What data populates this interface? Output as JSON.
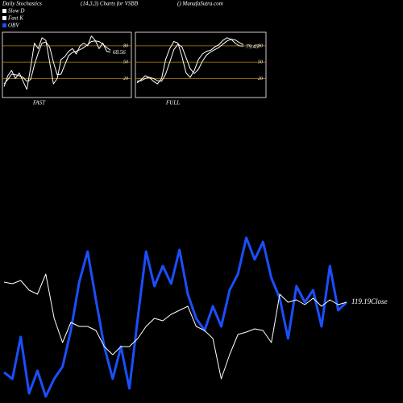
{
  "header": {
    "title": "Daily Stochastics",
    "subtitle": "(14,3,3) Charts for VSBB",
    "source": "() MunafaSutra.com"
  },
  "chart_data": [
    {
      "type": "line",
      "title": "FAST",
      "ylim": [
        -15,
        105
      ],
      "yticks": [
        20,
        50,
        80
      ],
      "grid_color": "#b8860b",
      "series": [
        {
          "name": "Fast K",
          "color": "#ffffff",
          "values": [
            5,
            25,
            35,
            20,
            30,
            15,
            0,
            40,
            85,
            75,
            95,
            90,
            50,
            10,
            20,
            55,
            60,
            70,
            75,
            65,
            80,
            85,
            80,
            98,
            90,
            75,
            85,
            70,
            68.56
          ]
        },
        {
          "name": "Slow D",
          "color": "#ffffff",
          "values": [
            10,
            18,
            28,
            27,
            25,
            22,
            15,
            18,
            45,
            67,
            85,
            87,
            78,
            50,
            27,
            28,
            45,
            62,
            68,
            70,
            73,
            77,
            82,
            88,
            89,
            88,
            83,
            77,
            72
          ]
        }
      ]
    },
    {
      "type": "line",
      "title": "FULL",
      "ylim": [
        -15,
        105
      ],
      "yticks": [
        20,
        50,
        80
      ],
      "grid_color": "#b8860b",
      "series": [
        {
          "color": "#ffffff",
          "values": [
            12,
            18,
            25,
            22,
            15,
            10,
            20,
            55,
            75,
            88,
            85,
            60,
            30,
            22,
            35,
            55,
            65,
            70,
            72,
            78,
            82,
            90,
            95,
            92,
            85,
            80,
            79.45
          ]
        },
        {
          "color": "#ffffff",
          "values": [
            15,
            16,
            20,
            22,
            20,
            16,
            15,
            28,
            50,
            73,
            83,
            78,
            58,
            38,
            29,
            37,
            52,
            63,
            69,
            73,
            77,
            83,
            89,
            92,
            91,
            86,
            82
          ]
        }
      ]
    },
    {
      "type": "line",
      "ylim": [
        0,
        220
      ],
      "y2lim": [
        106.69,
        128.69
      ],
      "series": [
        {
          "name": "OBV",
          "color": "#1a4fff",
          "values": [
            38,
            30,
            82,
            12,
            40,
            8,
            30,
            45,
            90,
            150,
            188,
            128,
            70,
            30,
            70,
            18,
            105,
            188,
            145,
            170,
            148,
            190,
            135,
            105,
            90,
            120,
            95,
            140,
            160,
            205,
            178,
            200,
            155,
            130,
            80,
            145,
            125,
            140,
            95,
            170,
            115,
            125
          ]
        },
        {
          "color": "#ffffff",
          "axis": "y2",
          "values": [
            121.69,
            121.49,
            121.89,
            120.69,
            120.19,
            122.69,
            117.19,
            114.19,
            116.69,
            116.19,
            116.19,
            115.69,
            113.69,
            112.69,
            113.69,
            113.69,
            114.69,
            116.19,
            117.19,
            116.89,
            117.69,
            118.19,
            118.69,
            116.19,
            115.69,
            114.69,
            109.69,
            112.69,
            115.19,
            115.49,
            115.89,
            115.69,
            114.19,
            120.19,
            119.19,
            119.49,
            118.89,
            119.69,
            118.69,
            119.49,
            118.89,
            119.19
          ],
          "value_labels": [
            null,
            null,
            null,
            null,
            null,
            null,
            null,
            null,
            null,
            null,
            null,
            null,
            null,
            null,
            null,
            null,
            null,
            null,
            null,
            null,
            null,
            null,
            null,
            null,
            null,
            null,
            null,
            null,
            null,
            null,
            null,
            null,
            null,
            null,
            null,
            null,
            null,
            null,
            null,
            null,
            null,
            "119.19Close"
          ]
        }
      ]
    }
  ]
}
